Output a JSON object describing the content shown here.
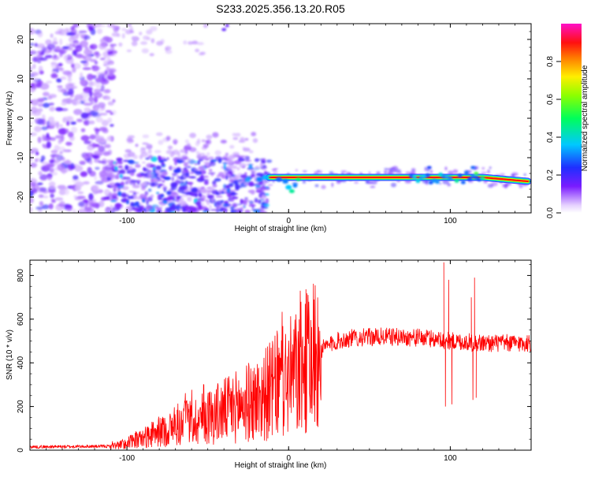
{
  "page_title": "S233.2025.356.13.20.R05",
  "colors": {
    "snr_line": "#ff0000",
    "spectrogram_track": "#e8003a",
    "frame": "#000000"
  },
  "chart_data": [
    {
      "type": "heatmap",
      "title": "S233.2025.356.13.20.R05",
      "xlabel": "Height of straight line (km)",
      "ylabel": "Frequency (Hz)",
      "xlim": [
        -160,
        150
      ],
      "ylim": [
        -24,
        24
      ],
      "x_ticks": [
        -100,
        0,
        100
      ],
      "x_tick_labels": [
        "-100",
        "0",
        "100"
      ],
      "y_ticks": [
        20,
        10,
        0,
        -10,
        -20
      ],
      "y_tick_labels": [
        "20",
        "10",
        "0",
        "-10",
        "-20"
      ],
      "colorbar": {
        "label": "Normalized spectral amplitude",
        "range": [
          0,
          1
        ],
        "ticks": [
          0.0,
          0.2,
          0.4,
          0.6,
          0.8
        ],
        "tick_labels": [
          "0.0",
          "0.2",
          "0.4",
          "0.6",
          "0.8"
        ],
        "colormap": "rainbow (white-violet-blue-cyan-green-yellow-red-magenta)"
      },
      "features": {
        "dominant_track": {
          "description_kind": "narrow horizontal line",
          "frequency_hz": -15,
          "x_range": [
            -12,
            148
          ],
          "amplitude_range": [
            0.6,
            1.0
          ],
          "frequency_drift_end_hz": -16
        },
        "distortion_near_x": [
          0,
          80,
          100,
          115
        ],
        "diffuse_noise_region_x": [
          -160,
          -110
        ],
        "low_frequency_cluster_x": [
          -110,
          -15
        ],
        "low_frequency_cluster_freq_hz": [
          -24,
          -10
        ]
      }
    },
    {
      "type": "line",
      "title": "",
      "xlabel": "Height of straight line (km)",
      "ylabel": "SNR (10 * v/v)",
      "xlim": [
        -160,
        150
      ],
      "ylim": [
        0,
        870
      ],
      "x_ticks": [
        -100,
        0,
        100
      ],
      "x_tick_labels": [
        "-100",
        "0",
        "100"
      ],
      "y_ticks": [
        0,
        200,
        400,
        600,
        800
      ],
      "y_tick_labels": [
        "0",
        "200",
        "400",
        "600",
        "800"
      ],
      "grid": false,
      "series": [
        {
          "name": "",
          "color": "#ff0000",
          "envelope_points": [
            {
              "x": -160,
              "y": 15
            },
            {
              "x": -110,
              "y": 18
            },
            {
              "x": -100,
              "y": 30
            },
            {
              "x": -80,
              "y": 80
            },
            {
              "x": -60,
              "y": 130
            },
            {
              "x": -40,
              "y": 180
            },
            {
              "x": -20,
              "y": 230
            },
            {
              "x": -5,
              "y": 300
            },
            {
              "x": 10,
              "y": 380
            },
            {
              "x": 20,
              "y": 460
            },
            {
              "x": 30,
              "y": 500
            },
            {
              "x": 40,
              "y": 515
            },
            {
              "x": 60,
              "y": 520
            },
            {
              "x": 80,
              "y": 515
            },
            {
              "x": 90,
              "y": 510
            },
            {
              "x": 100,
              "y": 500
            },
            {
              "x": 120,
              "y": 490
            },
            {
              "x": 150,
              "y": 490
            }
          ],
          "spikes": [
            {
              "x": 94,
              "y": 540
            },
            {
              "x": 96,
              "y": 860
            },
            {
              "x": 97,
              "y": 200
            },
            {
              "x": 99,
              "y": 780
            },
            {
              "x": 101,
              "y": 210
            },
            {
              "x": 113,
              "y": 700
            },
            {
              "x": 114,
              "y": 230
            },
            {
              "x": 115,
              "y": 790
            },
            {
              "x": 116,
              "y": 240
            }
          ]
        }
      ]
    }
  ]
}
